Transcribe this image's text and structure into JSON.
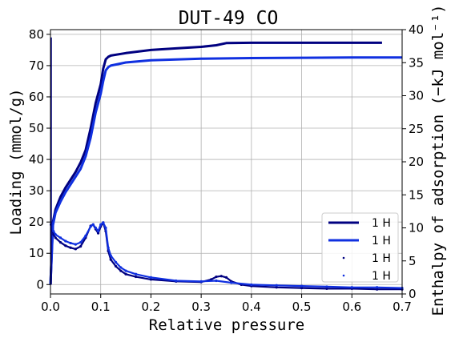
{
  "chart_data": {
    "type": "line",
    "title": "DUT-49 CO",
    "xlabel": "Relative pressure",
    "ylabel_left": "Loading (mmol/g)",
    "ylabel_right": "Enthalpy of adsorption (−kJ mol⁻¹)",
    "xlim": [
      0,
      0.7
    ],
    "ylim_left": [
      -3,
      81.5
    ],
    "ylim_right": [
      0,
      40
    ],
    "x_ticks": [
      0.0,
      0.1,
      0.2,
      0.3,
      0.4,
      0.5,
      0.6,
      0.7
    ],
    "x_tick_labels": [
      "0.0",
      "0.1",
      "0.2",
      "0.3",
      "0.4",
      "0.5",
      "0.6",
      "0.7"
    ],
    "y_left_ticks": [
      0,
      10,
      20,
      30,
      40,
      50,
      60,
      70,
      80
    ],
    "y_left_tick_labels": [
      "0",
      "10",
      "20",
      "30",
      "40",
      "50",
      "60",
      "70",
      "80"
    ],
    "y_right_ticks": [
      0,
      5,
      10,
      15,
      20,
      25,
      30,
      35,
      40
    ],
    "y_right_tick_labels": [
      "0",
      "5",
      "10",
      "15",
      "20",
      "25",
      "30",
      "35",
      "40"
    ],
    "grid": true,
    "legend_position": "lower-right",
    "legend": [
      {
        "label": "1 H",
        "style": "line",
        "color": "#000080"
      },
      {
        "label": "1 H",
        "style": "line",
        "color": "#1030e0"
      },
      {
        "label": "1 H",
        "style": "marker",
        "color": "#000080"
      },
      {
        "label": "1 H",
        "style": "marker",
        "color": "#1030e0"
      }
    ],
    "series": [
      {
        "axis": "left",
        "style": "line",
        "color": "#000080",
        "x": [
          0.0,
          0.005,
          0.01,
          0.02,
          0.03,
          0.04,
          0.05,
          0.06,
          0.07,
          0.08,
          0.09,
          0.1,
          0.105,
          0.11,
          0.115,
          0.12,
          0.15,
          0.2,
          0.25,
          0.3,
          0.33,
          0.35,
          0.4,
          0.5,
          0.6,
          0.66
        ],
        "y": [
          0,
          20,
          24,
          28,
          31,
          33.5,
          36,
          39,
          43,
          50,
          58,
          64,
          69,
          72,
          72.8,
          73.2,
          74,
          75,
          75.5,
          76,
          76.5,
          77.2,
          77.3,
          77.3,
          77.3,
          77.3
        ]
      },
      {
        "axis": "left",
        "style": "line",
        "color": "#1030e0",
        "x": [
          0.0,
          0.005,
          0.01,
          0.02,
          0.03,
          0.04,
          0.05,
          0.06,
          0.07,
          0.08,
          0.09,
          0.1,
          0.105,
          0.11,
          0.115,
          0.12,
          0.15,
          0.2,
          0.3,
          0.4,
          0.5,
          0.6,
          0.7
        ],
        "y": [
          0,
          19,
          23,
          26.5,
          29.5,
          32,
          34.5,
          37,
          41,
          47,
          55,
          61,
          65,
          68.5,
          69.5,
          70,
          71,
          71.7,
          72.2,
          72.4,
          72.5,
          72.6,
          72.6
        ]
      },
      {
        "axis": "right",
        "style": "marker",
        "color": "#000080",
        "x": [
          0.001,
          0.003,
          0.006,
          0.01,
          0.02,
          0.03,
          0.04,
          0.05,
          0.06,
          0.07,
          0.08,
          0.085,
          0.09,
          0.095,
          0.1,
          0.105,
          0.11,
          0.115,
          0.12,
          0.13,
          0.14,
          0.15,
          0.17,
          0.2,
          0.25,
          0.3,
          0.32,
          0.33,
          0.34,
          0.35,
          0.36,
          0.38,
          0.4,
          0.45,
          0.5,
          0.55,
          0.6,
          0.65,
          0.7
        ],
        "y": [
          10.5,
          9.8,
          9.0,
          8.5,
          7.8,
          7.3,
          7.0,
          6.8,
          7.2,
          8.5,
          10.3,
          10.5,
          9.8,
          9.2,
          10.2,
          10.8,
          9.5,
          6.5,
          5.2,
          4.2,
          3.5,
          3.0,
          2.6,
          2.2,
          1.9,
          1.8,
          2.2,
          2.6,
          2.7,
          2.5,
          1.9,
          1.4,
          1.2,
          1.0,
          0.9,
          0.8,
          0.8,
          0.7,
          0.7
        ]
      },
      {
        "axis": "right",
        "style": "marker",
        "color": "#1030e0",
        "x": [
          0.001,
          0.003,
          0.006,
          0.01,
          0.02,
          0.03,
          0.04,
          0.05,
          0.06,
          0.07,
          0.08,
          0.085,
          0.09,
          0.095,
          0.1,
          0.105,
          0.11,
          0.115,
          0.12,
          0.13,
          0.14,
          0.15,
          0.17,
          0.2,
          0.25,
          0.3,
          0.33,
          0.36,
          0.4,
          0.45,
          0.5,
          0.55,
          0.6,
          0.65,
          0.7
        ],
        "y": [
          10.5,
          10.0,
          9.5,
          9.0,
          8.5,
          8.0,
          7.7,
          7.5,
          7.8,
          8.8,
          10.2,
          10.5,
          10.0,
          9.5,
          10.5,
          10.8,
          10.0,
          7.0,
          5.8,
          4.8,
          4.0,
          3.5,
          3.0,
          2.5,
          2.0,
          1.9,
          2.0,
          1.7,
          1.4,
          1.3,
          1.2,
          1.1,
          1.0,
          1.0,
          0.9
        ]
      }
    ]
  }
}
